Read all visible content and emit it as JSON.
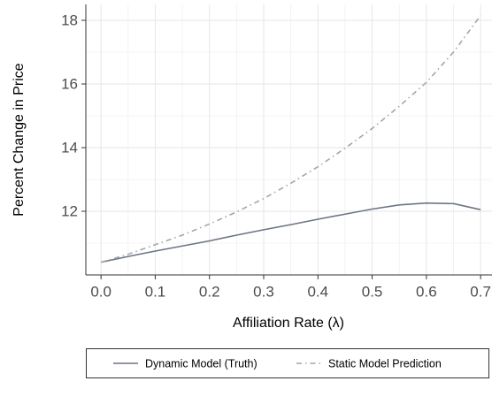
{
  "chart_data": {
    "type": "line",
    "x": [
      0.0,
      0.05,
      0.1,
      0.15,
      0.2,
      0.25,
      0.3,
      0.35,
      0.4,
      0.45,
      0.5,
      0.55,
      0.6,
      0.65,
      0.7
    ],
    "series": [
      {
        "name": "Dynamic Model (Truth)",
        "color": "#6b7584",
        "dash": "solid",
        "values": [
          10.4,
          10.58,
          10.75,
          10.91,
          11.07,
          11.25,
          11.42,
          11.58,
          11.75,
          11.91,
          12.07,
          12.2,
          12.26,
          12.24,
          12.05
        ]
      },
      {
        "name": "Static Model Prediction",
        "color": "#a6a6a6",
        "dash": "dashdot",
        "values": [
          10.4,
          10.65,
          10.95,
          11.25,
          11.6,
          11.98,
          12.4,
          12.88,
          13.4,
          13.98,
          14.6,
          15.3,
          16.05,
          17.0,
          18.15
        ]
      }
    ],
    "xlabel": "Affiliation Rate  (λ)",
    "ylabel": "Percent Change in Price",
    "xlim": [
      -0.028,
      0.721
    ],
    "ylim": [
      10,
      18.5
    ],
    "xticks": [
      {
        "value": 0,
        "label": "0.0"
      },
      0.1,
      0.2,
      0.3,
      0.4,
      0.5,
      0.6,
      0.7
    ],
    "yticks": [
      12,
      14,
      16,
      18
    ],
    "xminor": [
      0.05,
      0.15,
      0.25,
      0.35,
      0.45,
      0.55,
      0.65
    ],
    "yminor": [
      11,
      13,
      15,
      17
    ],
    "grid": true,
    "legend": "bottom"
  }
}
